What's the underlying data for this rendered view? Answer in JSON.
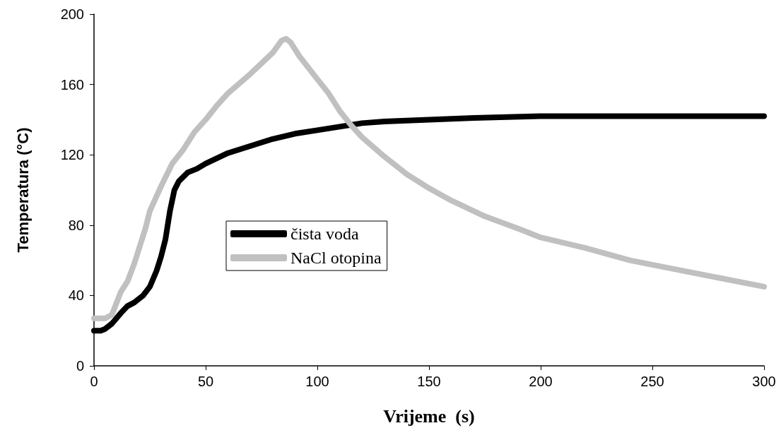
{
  "chart_data": {
    "type": "line",
    "xlabel": "Vrijeme  (s)",
    "ylabel": "Temperatura (°C)",
    "xlim": [
      0,
      300
    ],
    "xticks": [
      0,
      50,
      100,
      150,
      200,
      250,
      300
    ],
    "ylim": [
      0,
      200
    ],
    "yticks": [
      0,
      40,
      80,
      120,
      160,
      200
    ],
    "grid": false,
    "legend": "center left",
    "line_style": "solid",
    "series": [
      {
        "name": "čista voda",
        "color": "#000000",
        "x": [
          0,
          3,
          5,
          8,
          12,
          15,
          18,
          22,
          25,
          28,
          30,
          32,
          34,
          36,
          38,
          42,
          46,
          50,
          55,
          60,
          70,
          80,
          90,
          100,
          110,
          120,
          130,
          150,
          170,
          200,
          250,
          300
        ],
        "values": [
          20,
          20,
          21,
          24,
          30,
          34,
          36,
          40,
          45,
          54,
          62,
          72,
          88,
          100,
          105,
          110,
          112,
          115,
          118,
          121,
          125,
          129,
          132,
          134,
          136,
          138,
          139,
          140,
          141,
          142,
          142,
          142
        ]
      },
      {
        "name": "NaCl otopina",
        "color": "#c0c0c0",
        "x": [
          0,
          5,
          8,
          12,
          15,
          18,
          20,
          23,
          25,
          30,
          35,
          40,
          45,
          50,
          55,
          60,
          70,
          80,
          84,
          86,
          88,
          92,
          100,
          105,
          110,
          115,
          120,
          130,
          140,
          150,
          160,
          175,
          190,
          200,
          220,
          240,
          260,
          280,
          300
        ],
        "values": [
          27,
          27,
          29,
          42,
          48,
          58,
          66,
          78,
          88,
          102,
          115,
          123,
          133,
          140,
          148,
          155,
          166,
          178,
          185,
          186,
          184,
          176,
          163,
          155,
          145,
          137,
          130,
          119,
          109,
          101,
          94,
          85,
          78,
          73,
          67,
          60,
          55,
          50,
          45
        ]
      }
    ]
  }
}
